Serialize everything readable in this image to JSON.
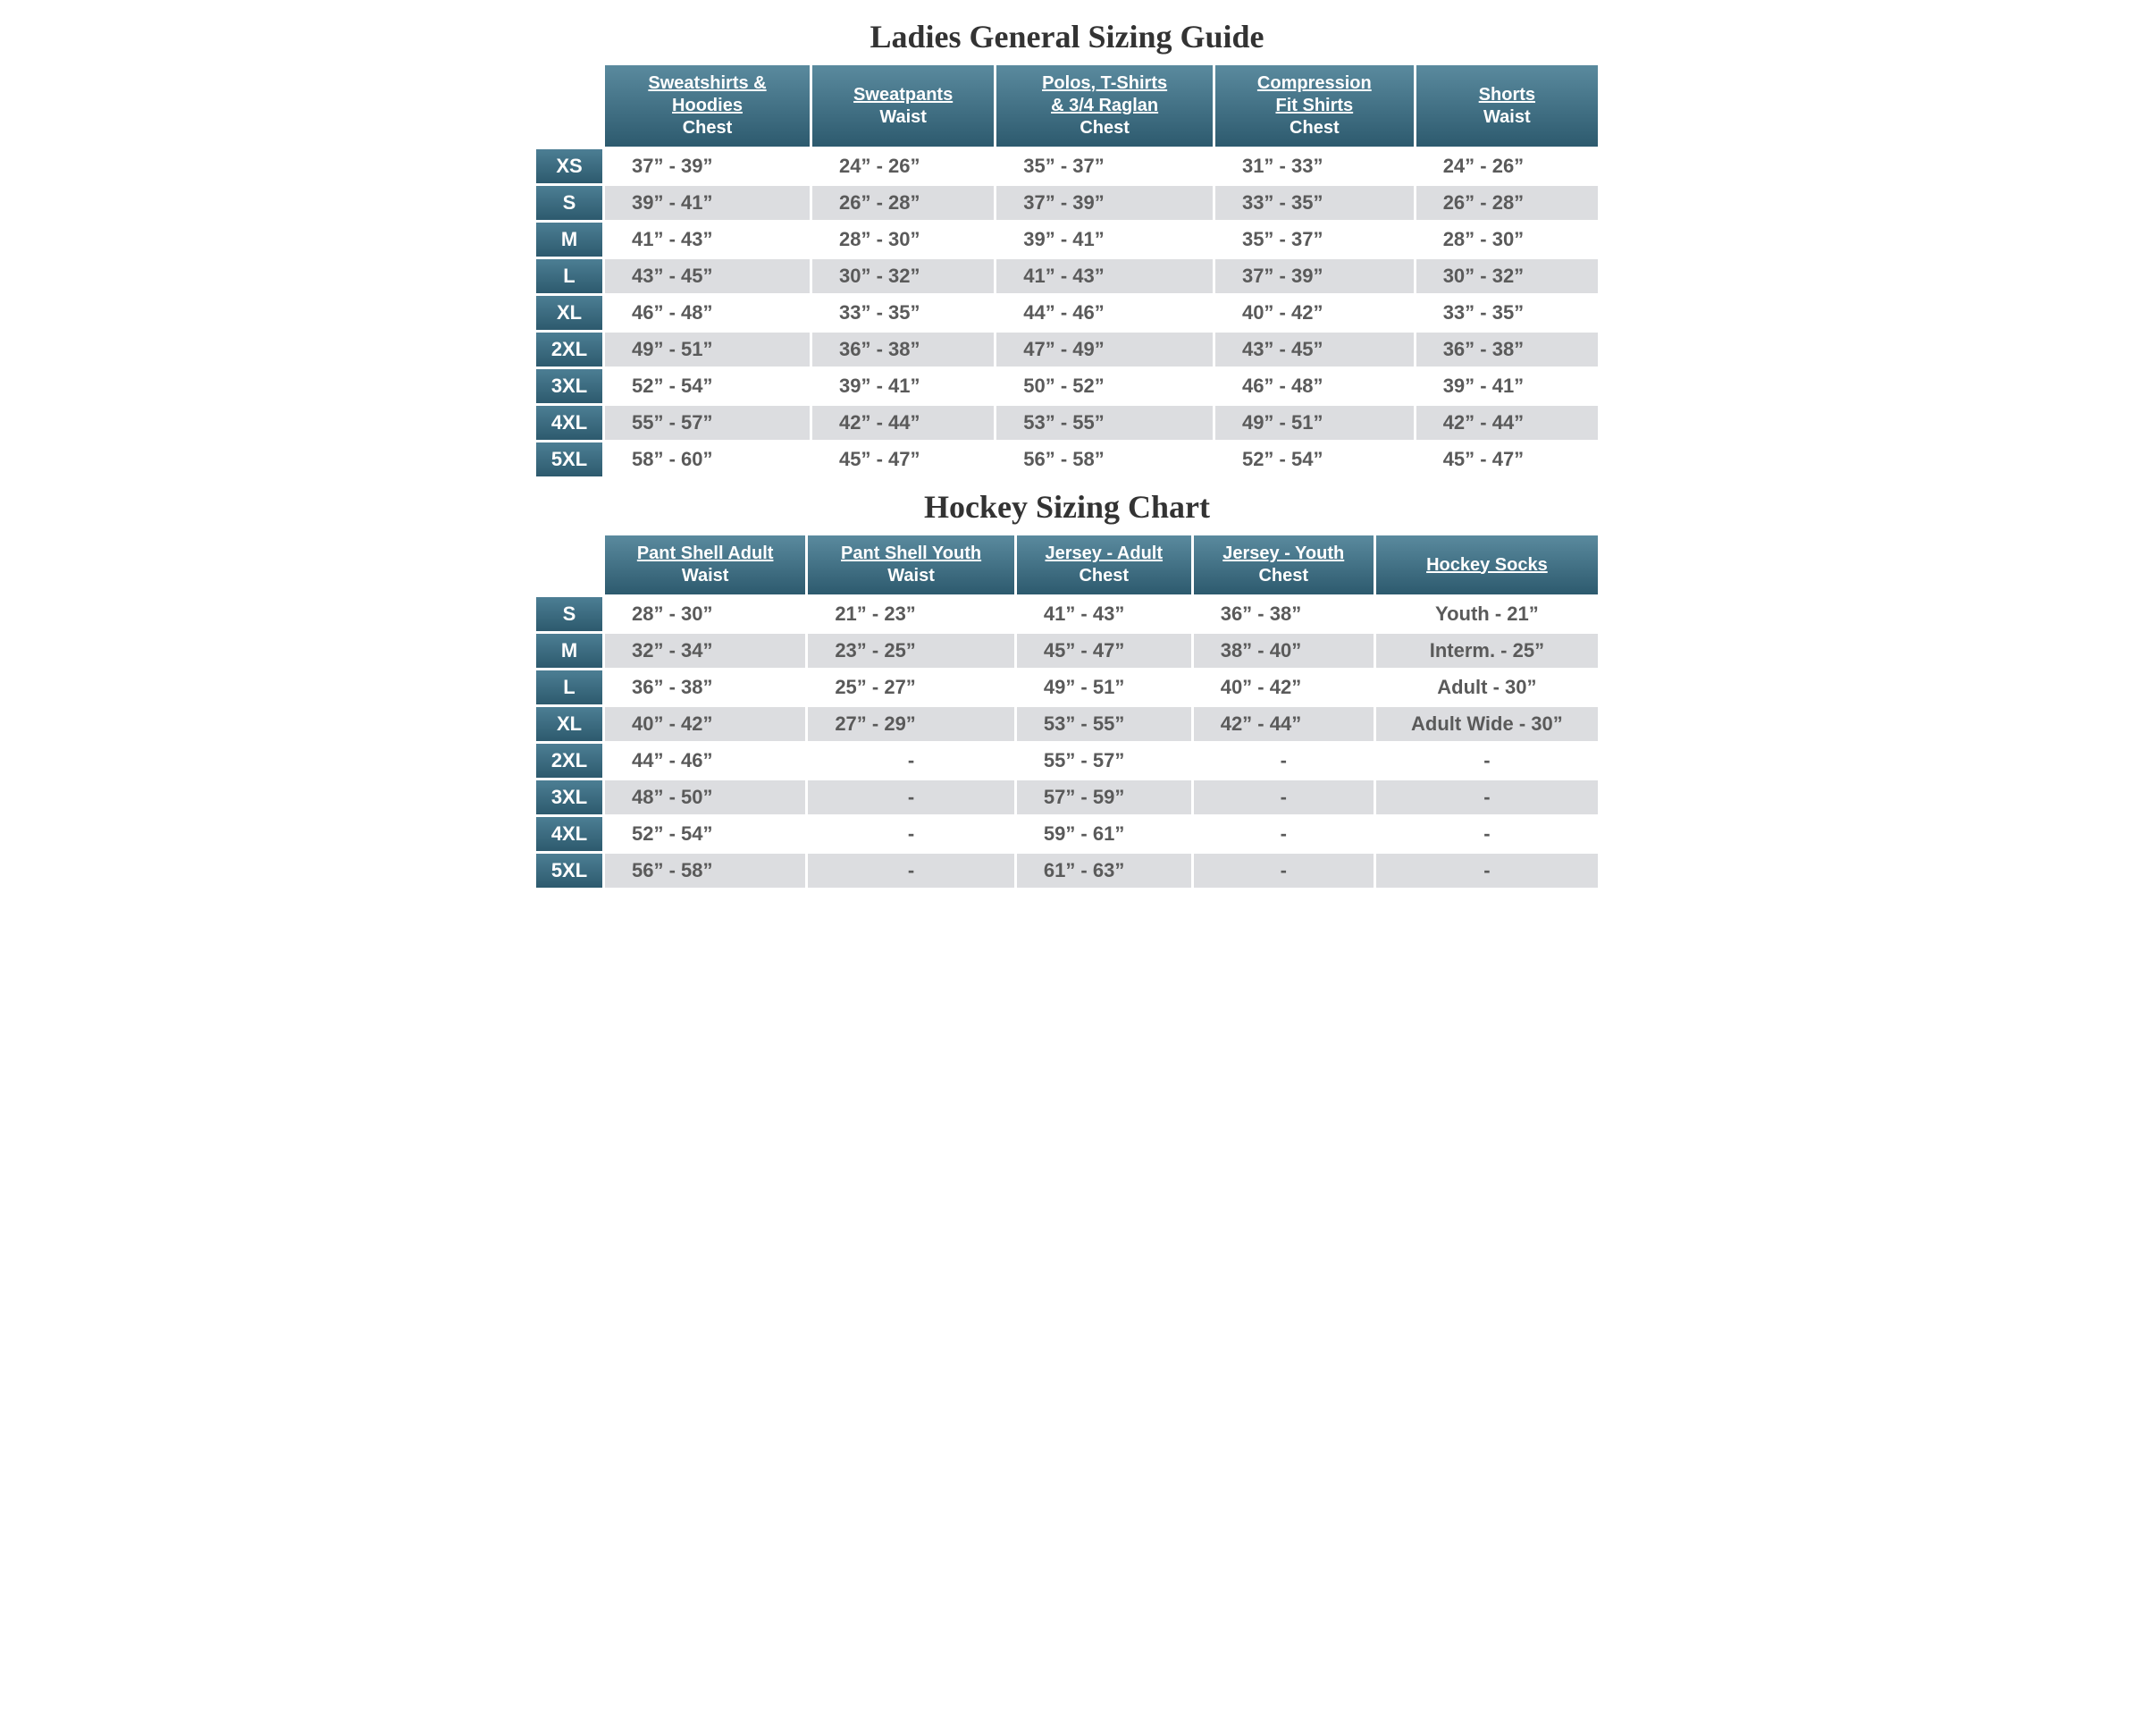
{
  "ladies": {
    "title": "Ladies General Sizing Guide",
    "columns": [
      {
        "line1": "Sweatshirts &",
        "line2": "Hoodies",
        "sub": "Chest"
      },
      {
        "line1": "Sweatpants",
        "line2": "",
        "sub": "Waist"
      },
      {
        "line1": "Polos, T-Shirts",
        "line2": "& 3/4 Raglan",
        "sub": "Chest"
      },
      {
        "line1": "Compression",
        "line2": "Fit Shirts",
        "sub": "Chest"
      },
      {
        "line1": "Shorts",
        "line2": "",
        "sub": "Waist"
      }
    ],
    "sizes": [
      "XS",
      "S",
      "M",
      "L",
      "XL",
      "2XL",
      "3XL",
      "4XL",
      "5XL"
    ],
    "rows": [
      [
        "37” - 39”",
        "24” - 26”",
        "35” - 37”",
        "31” - 33”",
        "24” - 26”"
      ],
      [
        "39” - 41”",
        "26” - 28”",
        "37” - 39”",
        "33” - 35”",
        "26” - 28”"
      ],
      [
        "41” - 43”",
        "28” - 30”",
        "39” - 41”",
        "35” - 37”",
        "28” - 30”"
      ],
      [
        "43” - 45”",
        "30” - 32”",
        "41” - 43”",
        "37” - 39”",
        "30” - 32”"
      ],
      [
        "46” - 48”",
        "33” - 35”",
        "44” - 46”",
        "40” - 42”",
        "33” - 35”"
      ],
      [
        "49” - 51”",
        "36” - 38”",
        "47” - 49”",
        "43” - 45”",
        "36” - 38”"
      ],
      [
        "52” - 54”",
        "39” - 41”",
        "50” - 52”",
        "46” - 48”",
        "39” - 41”"
      ],
      [
        "55” - 57”",
        "42” - 44”",
        "53” - 55”",
        "49” - 51”",
        "42” - 44”"
      ],
      [
        "58” - 60”",
        "45” - 47”",
        "56” - 58”",
        "52” - 54”",
        "45” - 47”"
      ]
    ]
  },
  "hockey": {
    "title": "Hockey Sizing Chart",
    "columns": [
      {
        "line1": "Pant Shell Adult",
        "line2": "",
        "sub": "Waist"
      },
      {
        "line1": "Pant Shell Youth",
        "line2": "",
        "sub": "Waist"
      },
      {
        "line1": "Jersey - Adult",
        "line2": "",
        "sub": "Chest"
      },
      {
        "line1": "Jersey - Youth",
        "line2": "",
        "sub": "Chest"
      },
      {
        "line1": "Hockey Socks",
        "line2": "",
        "sub": ""
      }
    ],
    "sizes": [
      "S",
      "M",
      "L",
      "XL",
      "2XL",
      "3XL",
      "4XL",
      "5XL"
    ],
    "rows": [
      [
        "28” - 30”",
        "21” - 23”",
        "41” - 43”",
        "36” - 38”",
        "Youth - 21”"
      ],
      [
        "32” - 34”",
        "23” - 25”",
        "45” - 47”",
        "38” - 40”",
        "Interm. - 25”"
      ],
      [
        "36” - 38”",
        "25” - 27”",
        "49” - 51”",
        "40” - 42”",
        "Adult - 30”"
      ],
      [
        "40” - 42”",
        "27” - 29”",
        "53” - 55”",
        "42” - 44”",
        "Adult Wide - 30”"
      ],
      [
        "44” - 46”",
        "-",
        "55” - 57”",
        "-",
        "-"
      ],
      [
        "48” - 50”",
        "-",
        "57” - 59”",
        "-",
        "-"
      ],
      [
        "52” - 54”",
        "-",
        "59” - 61”",
        "-",
        "-"
      ],
      [
        "56” - 58”",
        "-",
        "61” - 63”",
        "-",
        "-"
      ]
    ]
  },
  "style": {
    "header_gradient_top": "#5a8a9e",
    "header_gradient_bottom": "#2d5a6e",
    "sizecell_gradient_top": "#4c7e94",
    "sizecell_gradient_bottom": "#2d5a6e",
    "row_odd_bg": "#ffffff",
    "row_even_bg": "#dcdde0",
    "value_text_color": "#5a5a5a",
    "title_color": "#333333",
    "title_fontsize": 36,
    "header_fontsize": 20,
    "value_fontsize": 22,
    "size_label_fontsize": 22
  }
}
